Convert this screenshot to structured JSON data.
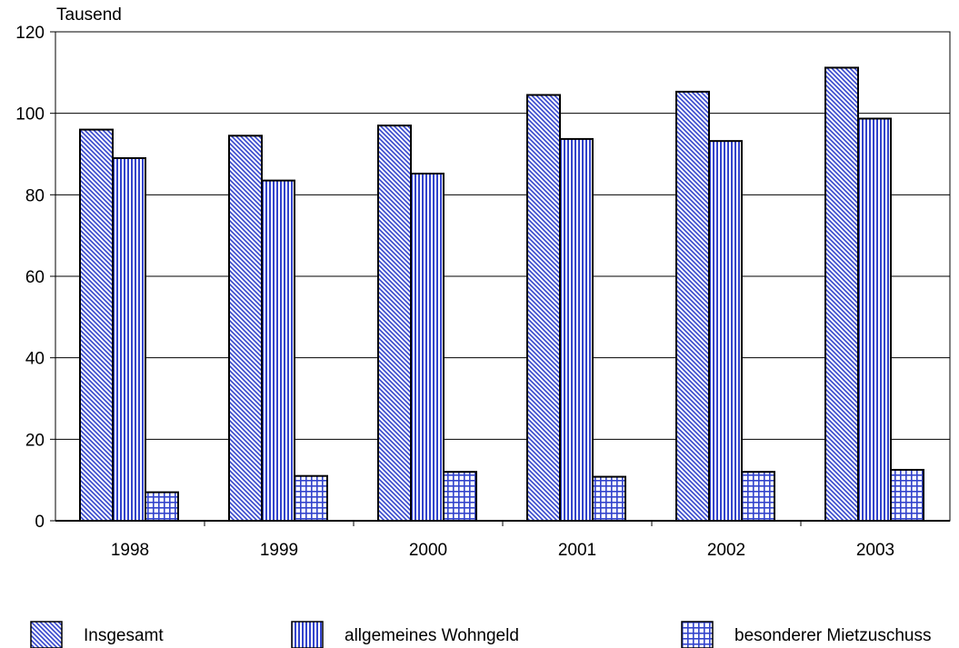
{
  "chart_data": {
    "type": "bar",
    "unit_label": "Tausend",
    "categories": [
      "1998",
      "1999",
      "2000",
      "2001",
      "2002",
      "2003"
    ],
    "ylim": [
      0,
      120
    ],
    "yticks": [
      0,
      20,
      40,
      60,
      80,
      100,
      120
    ],
    "grid": true,
    "legend_position": "bottom",
    "series": [
      {
        "name": "Insgesamt",
        "pattern": "diagonal-hatch",
        "color": "#3344cc",
        "values": [
          96,
          94.5,
          97,
          104.5,
          105.3,
          111.2
        ]
      },
      {
        "name": "allgemeines Wohngeld",
        "pattern": "vertical-stripes",
        "color": "#3344cc",
        "values": [
          89,
          83.5,
          85.2,
          93.7,
          93.2,
          98.7
        ]
      },
      {
        "name": "besonderer Mietzuschuss",
        "pattern": "grid",
        "color": "#3344cc",
        "values": [
          7,
          11,
          12,
          10.8,
          12,
          12.5
        ]
      }
    ]
  }
}
